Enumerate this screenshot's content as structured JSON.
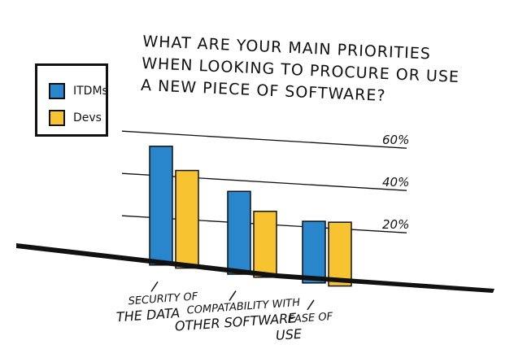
{
  "title_lines": [
    "WHAT ARE YOUR MAIN PRIORITIES",
    "WHEN LOOKING TO PROCURE OR USE",
    "A NEW PIECE OF SOFTWARE?"
  ],
  "legend": [
    {
      "name": "ITDMs",
      "color": "#2a86cc"
    },
    {
      "name": "Devs",
      "color": "#f8c330"
    }
  ],
  "chart_data": {
    "type": "bar",
    "title": "What are your main priorities when looking to procure or use a new piece of software?",
    "categories": [
      [
        "Security of",
        "the data"
      ],
      [
        "Compatability with",
        "other software"
      ],
      [
        "Ease of",
        "use"
      ]
    ],
    "series": [
      {
        "name": "ITDMs",
        "values": [
          55,
          38,
          28
        ]
      },
      {
        "name": "Devs",
        "values": [
          45,
          30,
          29
        ]
      }
    ],
    "yticks": [
      "20%",
      "40%",
      "60%"
    ],
    "ytick_values": [
      20,
      40,
      60
    ],
    "ylim": [
      0,
      60
    ]
  }
}
